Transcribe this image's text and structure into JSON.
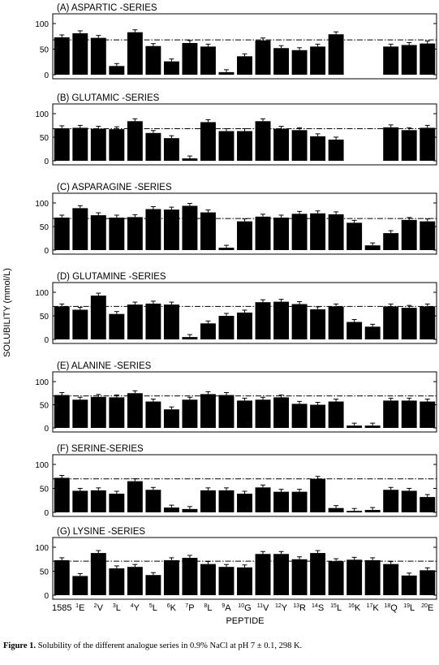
{
  "figure": {
    "y_axis_label": "SOLUBILITY (mmol/L)",
    "x_axis_label": "PEPTIDE",
    "caption_label": "Figure 1.",
    "caption_text": "Solubility of the different analogue series in 0.9% NaCl at pH 7 ± 0.1, 298 K."
  },
  "chart_data": [
    {
      "type": "bar",
      "title": "(A) ASPARTIC -SERIES",
      "categories": [
        "1585",
        "1E",
        "2V",
        "3L",
        "4Y",
        "5L",
        "6K",
        "7P",
        "8L",
        "9A",
        "10G",
        "11V",
        "12Y",
        "13R",
        "14S",
        "15L",
        "16K",
        "17K",
        "18Q",
        "19L",
        "20E"
      ],
      "values": [
        73,
        81,
        72,
        17,
        83,
        56,
        26,
        62,
        55,
        5,
        36,
        67,
        52,
        48,
        55,
        79,
        null,
        null,
        55,
        58,
        61
      ],
      "reference_line": 68,
      "ylim": [
        0,
        100
      ],
      "yticks": [
        0,
        50,
        100
      ],
      "grid": false
    },
    {
      "type": "bar",
      "title": "(B) GLUTAMIC -SERIES",
      "categories": [
        "1585",
        "1E",
        "2V",
        "3L",
        "4Y",
        "5L",
        "6K",
        "7P",
        "8L",
        "9A",
        "10G",
        "11V",
        "12Y",
        "13R",
        "14S",
        "15L",
        "16K",
        "17K",
        "18Q",
        "19L",
        "20E"
      ],
      "values": [
        69,
        70,
        68,
        67,
        84,
        59,
        48,
        5,
        82,
        63,
        63,
        84,
        68,
        65,
        52,
        45,
        null,
        null,
        71,
        65,
        70
      ],
      "reference_line": 68,
      "ylim": [
        0,
        100
      ],
      "yticks": [
        0,
        50,
        100
      ],
      "grid": false
    },
    {
      "type": "bar",
      "title": "(C) ASPARAGINE -SERIES",
      "categories": [
        "1585",
        "1E",
        "2V",
        "3L",
        "4Y",
        "5L",
        "6K",
        "7P",
        "8L",
        "9A",
        "10G",
        "11V",
        "12Y",
        "13R",
        "14S",
        "15L",
        "16K",
        "17K",
        "18Q",
        "19L",
        "20E"
      ],
      "values": [
        69,
        89,
        74,
        69,
        70,
        87,
        86,
        94,
        80,
        5,
        61,
        71,
        69,
        77,
        78,
        76,
        58,
        10,
        36,
        64,
        61
      ],
      "reference_line": 67,
      "ylim": [
        0,
        100
      ],
      "yticks": [
        0,
        50,
        100
      ],
      "grid": false
    },
    {
      "type": "bar",
      "title": "(D) GLUTAMINE -SERIES",
      "categories": [
        "1585",
        "1E",
        "2V",
        "3L",
        "4Y",
        "5L",
        "6K",
        "7P",
        "8L",
        "9A",
        "10G",
        "11V",
        "12Y",
        "13R",
        "14S",
        "15L",
        "16K",
        "17K",
        "18Q",
        "19L",
        "20E"
      ],
      "values": [
        70,
        63,
        93,
        54,
        74,
        76,
        74,
        5,
        34,
        50,
        57,
        79,
        80,
        75,
        64,
        70,
        37,
        27,
        70,
        67,
        70
      ],
      "reference_line": 70,
      "ylim": [
        0,
        100
      ],
      "yticks": [
        0,
        50,
        100
      ],
      "grid": false
    },
    {
      "type": "bar",
      "title": "(E) ALANINE -SERIES",
      "categories": [
        "1585",
        "1E",
        "2V",
        "3L",
        "4Y",
        "5L",
        "6K",
        "7P",
        "8L",
        "9A",
        "10G",
        "11V",
        "12Y",
        "13R",
        "14S",
        "15L",
        "16K",
        "17K",
        "18Q",
        "19L",
        "20E"
      ],
      "values": [
        71,
        61,
        67,
        66,
        75,
        57,
        40,
        61,
        73,
        71,
        59,
        61,
        66,
        52,
        50,
        57,
        5,
        5,
        59,
        59,
        57
      ],
      "reference_line": 69,
      "ylim": [
        0,
        100
      ],
      "yticks": [
        0,
        50,
        100
      ],
      "grid": false
    },
    {
      "type": "bar",
      "title": "(F) SERINE-SERIES",
      "categories": [
        "1585",
        "1E",
        "2V",
        "3L",
        "4Y",
        "5L",
        "6K",
        "7P",
        "8L",
        "9A",
        "10G",
        "11V",
        "12Y",
        "13R",
        "14S",
        "15L",
        "16K",
        "17K",
        "18Q",
        "19L",
        "20E"
      ],
      "values": [
        72,
        45,
        46,
        39,
        65,
        47,
        10,
        7,
        46,
        46,
        39,
        52,
        43,
        43,
        70,
        9,
        3,
        5,
        47,
        45,
        32
      ],
      "reference_line": 70,
      "ylim": [
        0,
        100
      ],
      "yticks": [
        0,
        50,
        100
      ],
      "grid": false
    },
    {
      "type": "bar",
      "title": "(G) LYSINE -SERIES",
      "categories": [
        "1585",
        "1E",
        "2V",
        "3L",
        "4Y",
        "5L",
        "6K",
        "7P",
        "8L",
        "9A",
        "10G",
        "11V",
        "12Y",
        "13R",
        "14S",
        "15L",
        "16K",
        "17K",
        "18Q",
        "19L",
        "20E"
      ],
      "values": [
        73,
        40,
        88,
        56,
        59,
        42,
        73,
        78,
        65,
        59,
        58,
        86,
        86,
        75,
        88,
        71,
        74,
        73,
        65,
        41,
        52
      ],
      "reference_line": 71,
      "ylim": [
        0,
        100
      ],
      "yticks": [
        0,
        50,
        100
      ],
      "grid": false
    }
  ],
  "x_tick_labels": [
    {
      "sup": "",
      "main": "1585"
    },
    {
      "sup": "1",
      "main": "E"
    },
    {
      "sup": "2",
      "main": "V"
    },
    {
      "sup": "3",
      "main": "L"
    },
    {
      "sup": "4",
      "main": "Y"
    },
    {
      "sup": "5",
      "main": "L"
    },
    {
      "sup": "6",
      "main": "K"
    },
    {
      "sup": "7",
      "main": "P"
    },
    {
      "sup": "8",
      "main": "L"
    },
    {
      "sup": "9",
      "main": "A"
    },
    {
      "sup": "10",
      "main": "G"
    },
    {
      "sup": "11",
      "main": "V"
    },
    {
      "sup": "12",
      "main": "Y"
    },
    {
      "sup": "13",
      "main": "R"
    },
    {
      "sup": "14",
      "main": "S"
    },
    {
      "sup": "15",
      "main": "L"
    },
    {
      "sup": "16",
      "main": "K"
    },
    {
      "sup": "17",
      "main": "K"
    },
    {
      "sup": "18",
      "main": "Q"
    },
    {
      "sup": "19",
      "main": "L"
    },
    {
      "sup": "20",
      "main": "E"
    }
  ]
}
